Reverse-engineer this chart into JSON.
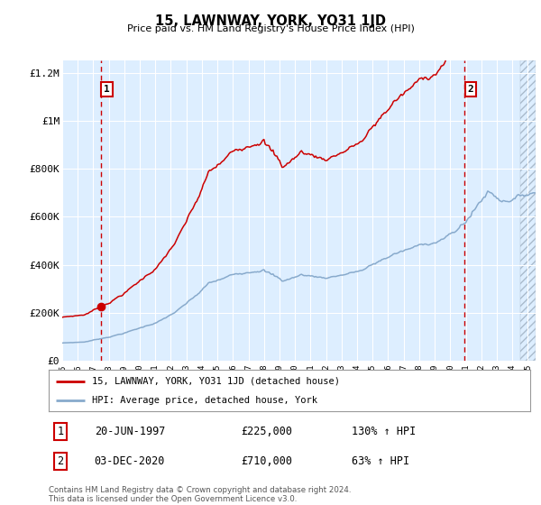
{
  "title": "15, LAWNWAY, YORK, YO31 1JD",
  "subtitle": "Price paid vs. HM Land Registry's House Price Index (HPI)",
  "legend_line1": "15, LAWNWAY, YORK, YO31 1JD (detached house)",
  "legend_line2": "HPI: Average price, detached house, York",
  "annotation1_date": "20-JUN-1997",
  "annotation1_price": "£225,000",
  "annotation1_hpi": "130% ↑ HPI",
  "annotation1_year": 1997.47,
  "annotation1_value": 225000,
  "annotation2_date": "03-DEC-2020",
  "annotation2_price": "£710,000",
  "annotation2_hpi": "63% ↑ HPI",
  "annotation2_year": 2020.92,
  "annotation2_value": 710000,
  "red_line_color": "#cc0000",
  "blue_line_color": "#88aacc",
  "plot_bg_color": "#ddeeff",
  "ylim": [
    0,
    1250000
  ],
  "xlim_start": 1995.0,
  "xlim_end": 2025.5,
  "ytick_labels": [
    "£0",
    "£200K",
    "£400K",
    "£600K",
    "£800K",
    "£1M",
    "£1.2M"
  ],
  "ytick_values": [
    0,
    200000,
    400000,
    600000,
    800000,
    1000000,
    1200000
  ],
  "footer_text": "Contains HM Land Registry data © Crown copyright and database right 2024.\nThis data is licensed under the Open Government Licence v3.0."
}
